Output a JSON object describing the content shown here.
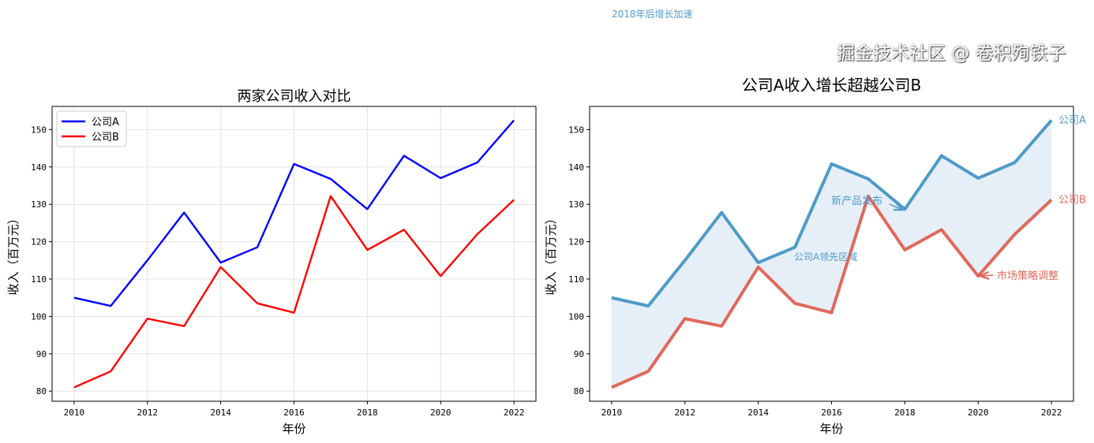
{
  "chart_data": [
    {
      "type": "line",
      "title": "两家公司收入对比",
      "xlabel": "年份",
      "ylabel": "收入（百万元）",
      "x": [
        2010,
        2011,
        2012,
        2013,
        2014,
        2015,
        2016,
        2017,
        2018,
        2019,
        2020,
        2021,
        2022
      ],
      "x_ticks": [
        2010,
        2012,
        2014,
        2016,
        2018,
        2020,
        2022
      ],
      "y_ticks": [
        80,
        90,
        100,
        110,
        120,
        130,
        140,
        150
      ],
      "xlim": [
        2009.4,
        2022.6
      ],
      "ylim": [
        77.3,
        156.2
      ],
      "grid": true,
      "legend_position": "top-left",
      "series": [
        {
          "name": "公司A",
          "color": "#0000ff",
          "values": [
            105,
            102.8,
            115,
            127.8,
            114.4,
            118.5,
            140.8,
            136.8,
            128.7,
            143,
            137,
            141.2,
            152.5
          ]
        },
        {
          "name": "公司B",
          "color": "#ff0000",
          "values": [
            81,
            85.3,
            99.4,
            97.4,
            113.2,
            103.5,
            101,
            132.2,
            117.8,
            123.2,
            110.8,
            122,
            131.2
          ]
        }
      ]
    },
    {
      "type": "line",
      "title": "公司A收入增长超越公司B",
      "xlabel": "年份",
      "ylabel": "收入（百万元）",
      "x": [
        2010,
        2011,
        2012,
        2013,
        2014,
        2015,
        2016,
        2017,
        2018,
        2019,
        2020,
        2021,
        2022
      ],
      "x_ticks": [
        2010,
        2012,
        2014,
        2016,
        2018,
        2020,
        2022
      ],
      "y_ticks": [
        80,
        90,
        100,
        110,
        120,
        130,
        140,
        150
      ],
      "xlim": [
        2009.4,
        2022.6
      ],
      "ylim": [
        77.3,
        156.2
      ],
      "grid": false,
      "fill_between_color": "#e6eff8",
      "series": [
        {
          "name": "公司A",
          "color": "#4f9bc9",
          "values": [
            105,
            102.8,
            115,
            127.8,
            114.4,
            118.5,
            140.8,
            136.8,
            128.7,
            143,
            137,
            141.2,
            152.5
          ]
        },
        {
          "name": "公司B",
          "color": "#e0695c",
          "values": [
            81,
            85.3,
            99.4,
            97.4,
            113.2,
            103.5,
            101,
            132.2,
            117.8,
            123.2,
            110.8,
            122,
            131.2
          ]
        }
      ],
      "annotations": {
        "new_product": "新产品发布",
        "lead_area": "公司A领先区域",
        "strategy": "市场策略调整",
        "acceleration": "2018年后增长加速"
      }
    }
  ],
  "watermark": "掘金技术社区 @ 卷积殉铁子"
}
